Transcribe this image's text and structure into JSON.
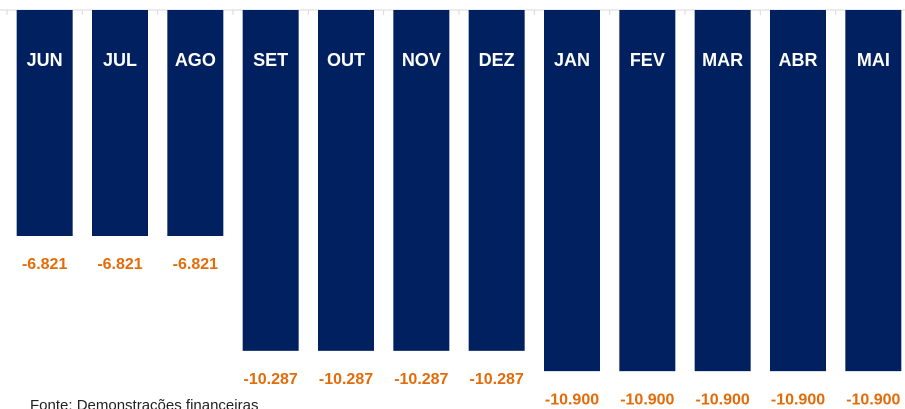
{
  "chart_data": {
    "type": "bar",
    "categories": [
      "JUN",
      "JUL",
      "AGO",
      "SET",
      "OUT",
      "NOV",
      "DEZ",
      "JAN",
      "FEV",
      "MAR",
      "ABR",
      "MAI"
    ],
    "values": [
      -6821,
      -6821,
      -6821,
      -10287,
      -10287,
      -10287,
      -10287,
      -10900,
      -10900,
      -10900,
      -10900,
      -10900
    ],
    "value_labels": [
      "-6.821",
      "-6.821",
      "-6.821",
      "-10.287",
      "-10.287",
      "-10.287",
      "-10.287",
      "-10.900",
      "-10.900",
      "-10.900",
      "-10.900",
      "-10.900"
    ],
    "color": "#002060",
    "label_color": "#e36c09",
    "ylim": [
      -12000,
      0
    ],
    "note": "Fonte: Demonstrações financeiras"
  }
}
